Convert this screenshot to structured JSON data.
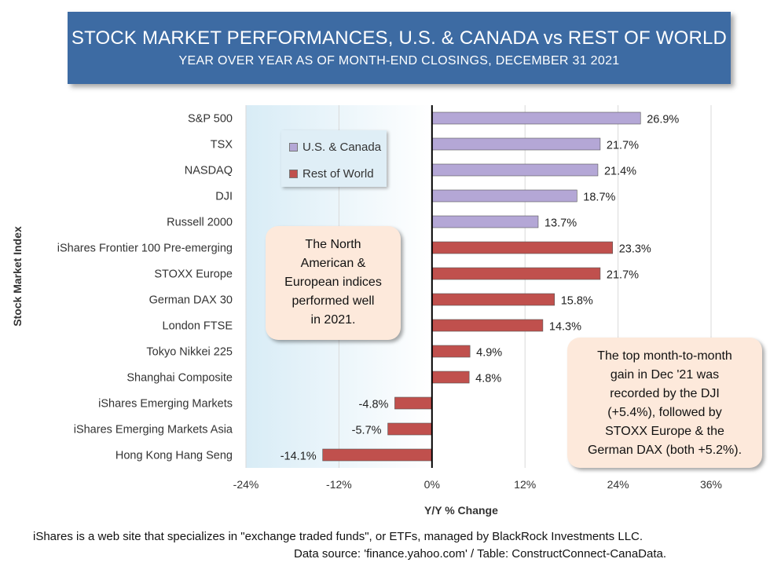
{
  "header": {
    "title": "STOCK MARKET PERFORMANCES, U.S. & CANADA vs REST OF WORLD",
    "subtitle": "YEAR OVER YEAR AS OF MONTH-END CLOSINGS, DECEMBER 31 2021"
  },
  "chart_data": {
    "type": "bar",
    "orientation": "horizontal",
    "categories": [
      "S&P 500",
      "TSX",
      "NASDAQ",
      "DJI",
      "Russell  2000",
      "iShares Frontier 100 Pre-emerging",
      "STOXX Europe",
      "German DAX 30",
      "London FTSE",
      "Tokyo Nikkei 225",
      "Shanghai Composite",
      "iShares Emerging Markets",
      "iShares Emerging Markets Asia",
      "Hong Kong Hang Seng"
    ],
    "values": [
      26.9,
      21.7,
      21.4,
      18.7,
      13.7,
      23.3,
      21.7,
      15.8,
      14.3,
      4.9,
      4.8,
      -4.8,
      -5.7,
      -14.1
    ],
    "value_labels": [
      "26.9%",
      "21.7%",
      "21.4%",
      "18.7%",
      "13.7%",
      "23.3%",
      "21.7%",
      "15.8%",
      "14.3%",
      "4.9%",
      "4.8%",
      "-4.8%",
      "-5.7%",
      "-14.1%"
    ],
    "groups": [
      "U.S. & Canada",
      "U.S. & Canada",
      "U.S. & Canada",
      "U.S. & Canada",
      "U.S. & Canada",
      "Rest of World",
      "Rest of World",
      "Rest of World",
      "Rest of World",
      "Rest of World",
      "Rest of World",
      "Rest of World",
      "Rest of World",
      "Rest of World"
    ],
    "xlabel": "Y/Y % Change",
    "ylabel": "Stock Market Index",
    "xlim": [
      -24,
      36
    ],
    "xticks": [
      -24,
      -12,
      0,
      12,
      24,
      36
    ],
    "xtick_labels": [
      "-24%",
      "-12%",
      "0%",
      "12%",
      "24%",
      "36%"
    ],
    "grid": "vertical",
    "legend_position": "top-left",
    "legend": [
      {
        "name": "U.S. & Canada",
        "color": "#b4a7d6"
      },
      {
        "name": "Rest of World",
        "color": "#c0504d"
      }
    ]
  },
  "colors": {
    "title_bg": "#3d6ba3",
    "us_canada": "#b4a7d6",
    "rest_of_world": "#c0504d",
    "callout_bg": "#fde9db"
  },
  "callouts": {
    "left": [
      "The North",
      "American &",
      "European indices",
      "performed well",
      "in 2021."
    ],
    "right": [
      "The top month-to-month",
      "gain in Dec '21 was",
      "recorded by the DJI",
      "(+5.4%), followed by",
      "STOXX Europe & the",
      "German DAX (both +5.2%)."
    ]
  },
  "footnotes": {
    "line1": "iShares is a web site that specializes in \"exchange traded funds\", or ETFs, managed by BlackRock Investments LLC.",
    "line2": "Data source: 'finance.yahoo.com' / Table: ConstructConnect-CanaData."
  }
}
